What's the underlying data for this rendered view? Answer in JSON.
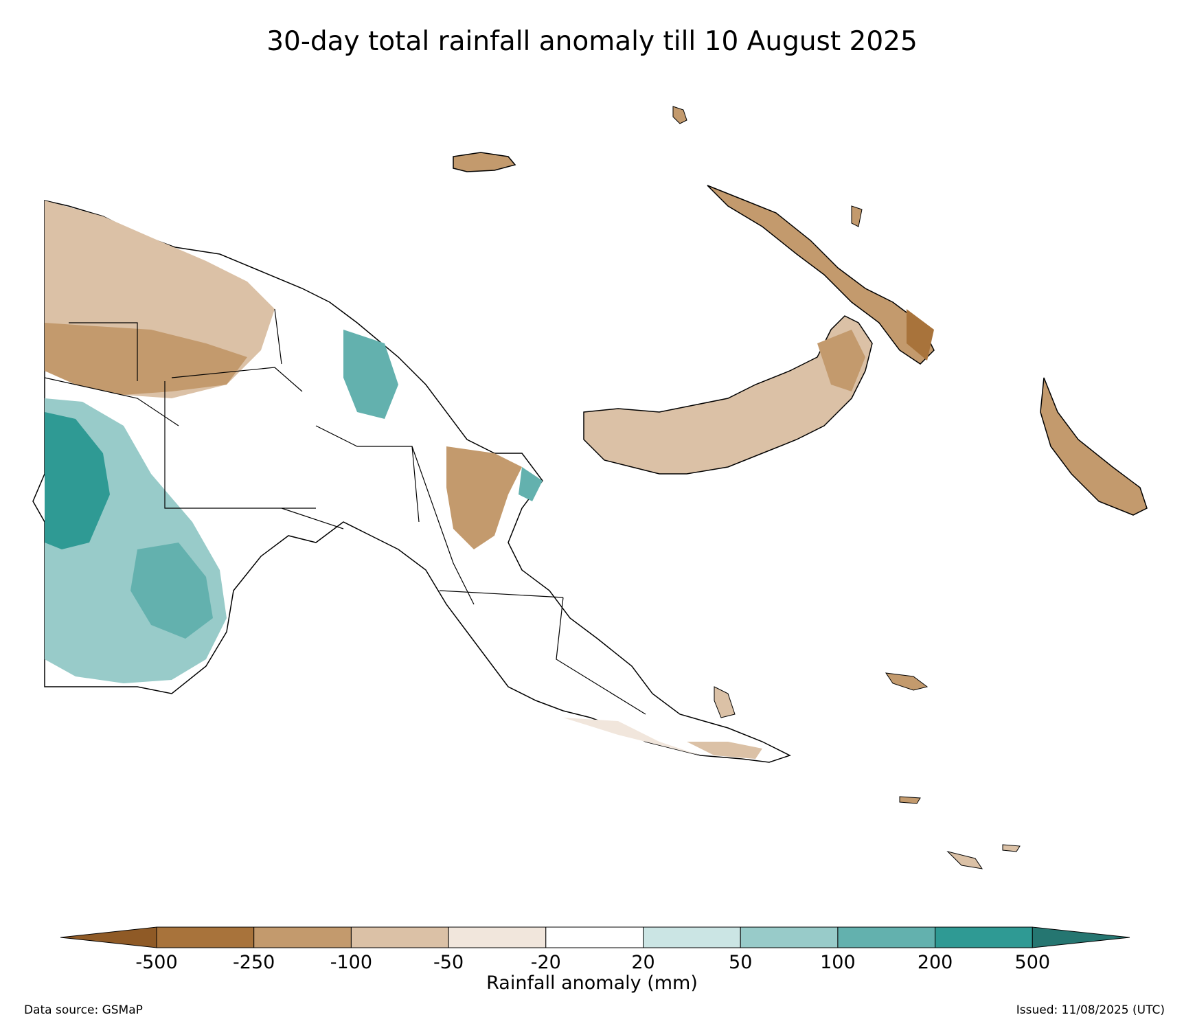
{
  "title": "30-day total rainfall anomaly till 10 August 2025",
  "legend": {
    "label": "Rainfall anomaly (mm)",
    "ticks": [
      "-500",
      "-250",
      "-100",
      "-50",
      "-20",
      "20",
      "50",
      "100",
      "200",
      "500"
    ],
    "bins": [
      {
        "range": "< -500",
        "color": "#8f5a26"
      },
      {
        "range": "-500 to -250",
        "color": "#a8733b"
      },
      {
        "range": "-250 to -100",
        "color": "#c39a6d"
      },
      {
        "range": "-100 to -50",
        "color": "#dbc1a6"
      },
      {
        "range": "-50 to -20",
        "color": "#f1e6dc"
      },
      {
        "range": "-20 to 20",
        "color": "#ffffff"
      },
      {
        "range": "20 to 50",
        "color": "#cbe5e4"
      },
      {
        "range": "50 to 100",
        "color": "#98cbc9"
      },
      {
        "range": "100 to 200",
        "color": "#63b1ae"
      },
      {
        "range": "200 to 500",
        "color": "#2f9a94"
      },
      {
        "range": "> 500",
        "color": "#257671"
      }
    ]
  },
  "footer": {
    "source": "Data source: GSMaP",
    "issued": "Issued: 11/08/2025 (UTC)"
  }
}
